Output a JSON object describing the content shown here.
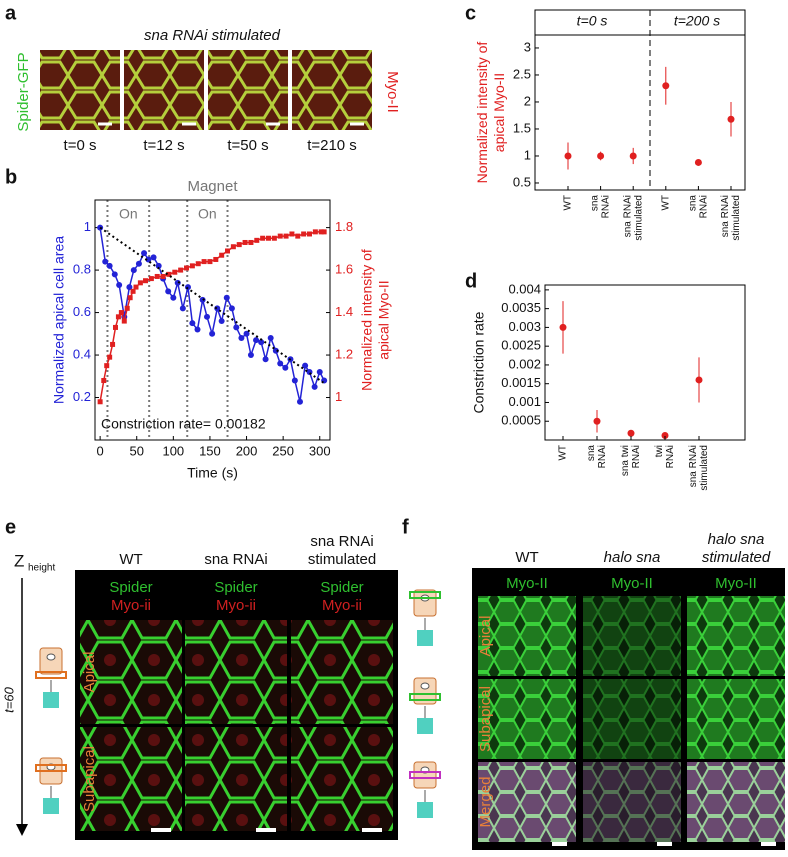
{
  "chart_data": [
    {
      "type": "line",
      "panel_label": "b",
      "title": "Magnet",
      "xlabel": "Time (s)",
      "ylabel": "Normalized apical cell area",
      "y2label": [
        "Normalized intensity of",
        "apical Myo-II"
      ],
      "xlim": [
        -7,
        314
      ],
      "xticks": [
        0,
        50,
        100,
        150,
        200,
        250,
        300
      ],
      "ylim": [
        0,
        1.13
      ],
      "yticks": [
        0.2,
        0.4,
        0.6,
        0.8,
        1
      ],
      "y2lim": [
        0.8,
        1.93
      ],
      "y2ticks": [
        1,
        1.2,
        1.4,
        1.6,
        1.8
      ],
      "magnet_lines": [
        10,
        67,
        119,
        174
      ],
      "on_label": "On",
      "annotation": "Constriction rate= 0.00182",
      "fit": {
        "x": [
          0,
          305
        ],
        "values": [
          1.0,
          0.27
        ]
      },
      "series": [
        {
          "color": "#2323d6",
          "marker": "circle",
          "x": [
            0,
            7,
            13,
            20,
            26,
            33,
            40,
            46,
            53,
            60,
            66,
            73,
            80,
            86,
            93,
            100,
            106,
            113,
            120,
            126,
            133,
            140,
            146,
            153,
            160,
            166,
            173,
            180,
            186,
            193,
            200,
            206,
            213,
            220,
            226,
            233,
            240,
            246,
            253,
            260,
            266,
            273,
            280,
            286,
            293,
            300,
            306
          ],
          "values": [
            1.0,
            0.84,
            0.82,
            0.78,
            0.73,
            0.58,
            0.72,
            0.8,
            0.83,
            0.88,
            0.85,
            0.86,
            0.82,
            0.76,
            0.7,
            0.67,
            0.74,
            0.62,
            0.72,
            0.55,
            0.52,
            0.66,
            0.58,
            0.5,
            0.62,
            0.56,
            0.67,
            0.62,
            0.53,
            0.48,
            0.5,
            0.4,
            0.47,
            0.46,
            0.38,
            0.48,
            0.42,
            0.36,
            0.34,
            0.38,
            0.28,
            0.18,
            0.35,
            0.32,
            0.25,
            0.32,
            0.28
          ]
        },
        {
          "color": "#e02020",
          "marker": "square",
          "axis": "y2",
          "x": [
            0,
            5,
            9,
            13,
            17,
            21,
            25,
            29,
            33,
            37,
            41,
            45,
            49,
            55,
            62,
            70,
            78,
            86,
            94,
            102,
            110,
            118,
            126,
            134,
            142,
            150,
            158,
            166,
            174,
            182,
            190,
            198,
            206,
            214,
            222,
            230,
            238,
            246,
            254,
            262,
            270,
            278,
            286,
            294,
            302,
            306
          ],
          "values": [
            0.98,
            1.08,
            1.15,
            1.19,
            1.25,
            1.33,
            1.38,
            1.4,
            1.36,
            1.42,
            1.47,
            1.5,
            1.52,
            1.54,
            1.55,
            1.56,
            1.57,
            1.57,
            1.58,
            1.59,
            1.6,
            1.61,
            1.62,
            1.63,
            1.64,
            1.64,
            1.65,
            1.67,
            1.69,
            1.71,
            1.72,
            1.73,
            1.73,
            1.74,
            1.75,
            1.75,
            1.75,
            1.76,
            1.76,
            1.77,
            1.76,
            1.77,
            1.77,
            1.78,
            1.78,
            1.78
          ]
        }
      ]
    },
    {
      "type": "errorbar",
      "panel_label": "c",
      "color": "#e02020",
      "ylabel": [
        "Normalized intensity of",
        "apical Myo-II"
      ],
      "group_labels": [
        "t=0 s",
        "t=200 s"
      ],
      "categories": [
        [
          "WT"
        ],
        [
          "sna",
          "RNAi"
        ],
        [
          "sna RNAi",
          "stimulated"
        ],
        [
          "WT"
        ],
        [
          "sna",
          "RNAi"
        ],
        [
          "sna RNAi",
          "stimulated"
        ]
      ],
      "values": [
        1.0,
        1.0,
        1.0,
        2.3,
        0.88,
        1.68
      ],
      "errors": [
        0.25,
        0.08,
        0.15,
        0.35,
        0.02,
        0.32
      ],
      "ylim": [
        0.37,
        3.24
      ],
      "yticks": [
        0.5,
        1,
        1.5,
        2,
        2.5,
        3
      ]
    },
    {
      "type": "errorbar",
      "panel_label": "d",
      "color": "#e02020",
      "ylabel": [
        "Constriction rate"
      ],
      "categories": [
        [
          "WT"
        ],
        [
          "sna",
          "RNAi"
        ],
        [
          "sna twi",
          "RNAi"
        ],
        [
          "twi",
          "RNAi"
        ],
        [
          "sna RNAi",
          "stimulated"
        ]
      ],
      "values": [
        0.003,
        0.0005,
        0.00018,
        0.00012,
        0.0016
      ],
      "errors": [
        0.0007,
        0.0003,
        2e-05,
        2e-05,
        0.0006
      ],
      "ylim": [
        0,
        0.00413
      ],
      "yticks": [
        0.0005,
        0.001,
        0.0015,
        0.002,
        0.0025,
        0.003,
        0.0035,
        0.004
      ]
    }
  ],
  "panel_a": {
    "label": "a",
    "title": "sna RNAi stimulated",
    "left_label": "Spider-GFP",
    "right_label": "Myo-II",
    "times": [
      "t=0 s",
      "t=12 s",
      "t=50 s",
      "t=210 s"
    ]
  },
  "panel_e": {
    "label": "e",
    "z_label": "Z",
    "z_sub": "height",
    "time_label": "t=60",
    "columns": [
      [
        "WT"
      ],
      [
        "sna RNAi"
      ],
      [
        "sna RNAi",
        "stimulated"
      ]
    ],
    "channel_top": "Spider",
    "channel_bottom": "Myo-ii",
    "rows": [
      "Apical",
      "Subapical"
    ]
  },
  "panel_f": {
    "label": "f",
    "columns": [
      [
        "WT"
      ],
      [
        "halo sna"
      ],
      [
        "halo sna",
        "stimulated"
      ]
    ],
    "channel": "Myo-II",
    "rows": [
      "Apical",
      "Subapical",
      "Merged"
    ]
  }
}
